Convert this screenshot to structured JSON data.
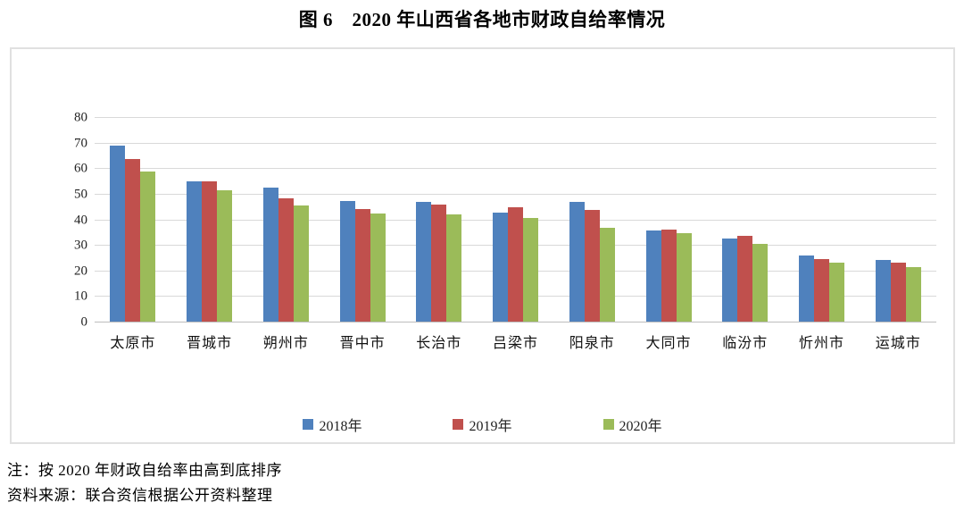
{
  "title": "图 6　2020 年山西省各地市财政自给率情况",
  "chart_data": {
    "type": "bar",
    "title": "图 6　2020 年山西省各地市财政自给率情况",
    "categories": [
      "太原市",
      "晋城市",
      "朔州市",
      "晋中市",
      "长治市",
      "吕梁市",
      "阳泉市",
      "大同市",
      "临汾市",
      "忻州市",
      "运城市"
    ],
    "series": [
      {
        "name": "2018年",
        "color": "#4F81BD",
        "values": [
          69.0,
          55.0,
          52.4,
          47.0,
          46.9,
          42.8,
          46.8,
          35.7,
          32.6,
          26.0,
          24.0
        ]
      },
      {
        "name": "2019年",
        "color": "#C0504D",
        "values": [
          63.6,
          54.9,
          48.1,
          44.1,
          45.8,
          44.7,
          43.8,
          36.0,
          33.6,
          24.3,
          23.2
        ]
      },
      {
        "name": "2020年",
        "color": "#9BBB59",
        "values": [
          58.6,
          51.4,
          45.4,
          42.3,
          41.9,
          40.6,
          36.7,
          34.7,
          30.5,
          23.2,
          21.4
        ]
      }
    ],
    "xlabel": "",
    "ylabel": "",
    "ylim": [
      0,
      80
    ],
    "ytick_step": 10,
    "grid": true,
    "legend_position": "bottom"
  },
  "footnotes": {
    "note": "注：按 2020 年财政自给率由高到底排序",
    "source": "资料来源：联合资信根据公开资料整理"
  },
  "colors": {
    "series_2018": "#4F81BD",
    "series_2019": "#C0504D",
    "series_2020": "#9BBB59",
    "gridline": "#D9D9D9",
    "axis_line": "#BDBDBD",
    "frame_border": "#E0E0E0"
  }
}
